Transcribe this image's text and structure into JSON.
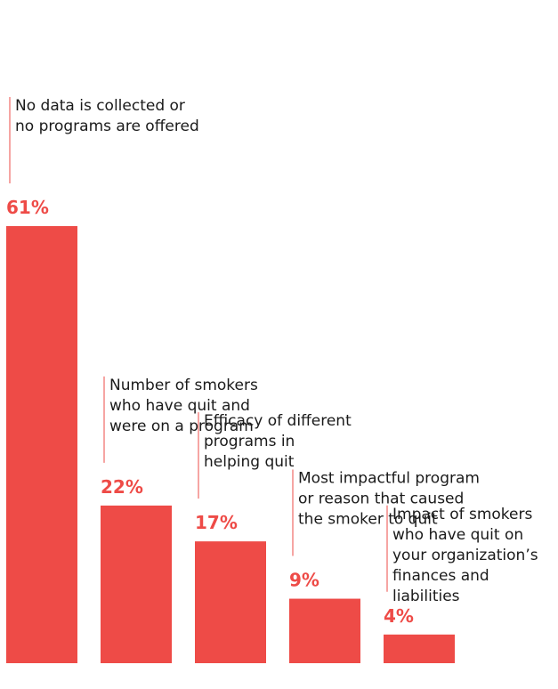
{
  "chart_data": {
    "type": "bar",
    "categories": [
      [
        "No data is collected or",
        "no programs are offered"
      ],
      [
        "Number of smokers",
        "who have quit and",
        "were on a program"
      ],
      [
        "Efficacy of different",
        "programs in",
        "helping quit"
      ],
      [
        "Most impactful program",
        "or reason that caused",
        "the smoker to quit"
      ],
      [
        "Impact of smokers",
        "who have quit on",
        "your organization’s",
        "finances and",
        "liabilities"
      ]
    ],
    "values": [
      61,
      22,
      17,
      9,
      4
    ],
    "value_labels": [
      "61%",
      "22%",
      "17%",
      "9%",
      "4%"
    ],
    "unit": "%",
    "ylim": [
      0,
      61
    ],
    "grid": false,
    "legend": "none",
    "colors": {
      "bar": "#ee4b47",
      "text": "#1a1a1a"
    }
  }
}
